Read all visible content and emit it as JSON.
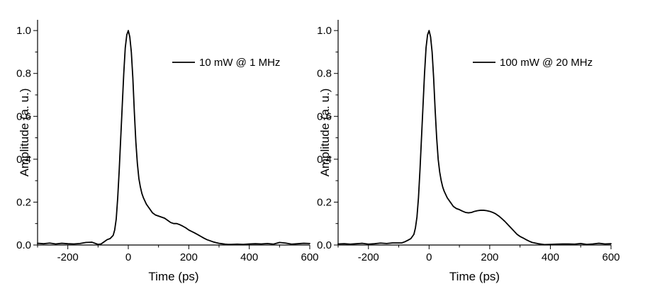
{
  "chart_data": [
    {
      "type": "line",
      "title": "",
      "xlabel": "Time (ps)",
      "ylabel": "Amplitude (a. u.)",
      "xlim": [
        -300,
        600
      ],
      "ylim": [
        0,
        1.05
      ],
      "xticks": [
        -200,
        0,
        200,
        400,
        600
      ],
      "xtick_labels": [
        "-200",
        "0",
        "200",
        "400",
        "600"
      ],
      "yticks": [
        0,
        0.2,
        0.4,
        0.6,
        0.8,
        1.0
      ],
      "ytick_labels": [
        "0.0",
        "0.2",
        "0.4",
        "0.6",
        "0.8",
        "1.0"
      ],
      "grid": false,
      "legend_position": "top-right",
      "series": [
        {
          "name": "10 mW @ 1 MHz",
          "color": "#000000",
          "x": [
            -300,
            -280,
            -260,
            -240,
            -220,
            -200,
            -180,
            -160,
            -140,
            -120,
            -100,
            -90,
            -80,
            -70,
            -60,
            -50,
            -45,
            -40,
            -35,
            -30,
            -25,
            -20,
            -15,
            -10,
            -5,
            0,
            5,
            10,
            15,
            20,
            25,
            30,
            35,
            40,
            45,
            50,
            60,
            70,
            80,
            90,
            100,
            110,
            120,
            130,
            140,
            150,
            160,
            170,
            180,
            190,
            200,
            210,
            220,
            230,
            240,
            250,
            260,
            270,
            280,
            290,
            300,
            310,
            320,
            330,
            340,
            360,
            380,
            400,
            420,
            440,
            460,
            480,
            500,
            520,
            540,
            560,
            580,
            600
          ],
          "y": [
            0.008,
            0.006,
            0.009,
            0.005,
            0.008,
            0.006,
            0.005,
            0.007,
            0.012,
            0.013,
            0.003,
            0.005,
            0.015,
            0.025,
            0.03,
            0.045,
            0.07,
            0.12,
            0.22,
            0.35,
            0.5,
            0.65,
            0.8,
            0.92,
            0.98,
            1.0,
            0.97,
            0.9,
            0.78,
            0.62,
            0.48,
            0.38,
            0.31,
            0.27,
            0.24,
            0.22,
            0.19,
            0.17,
            0.15,
            0.14,
            0.135,
            0.13,
            0.125,
            0.115,
            0.105,
            0.1,
            0.1,
            0.095,
            0.088,
            0.08,
            0.07,
            0.063,
            0.056,
            0.048,
            0.04,
            0.032,
            0.025,
            0.02,
            0.015,
            0.011,
            0.008,
            0.006,
            0.004,
            0.003,
            0.003,
            0.004,
            0.003,
            0.005,
            0.006,
            0.005,
            0.007,
            0.004,
            0.012,
            0.009,
            0.004,
            0.006,
            0.008,
            0.007
          ]
        }
      ]
    },
    {
      "type": "line",
      "title": "",
      "xlabel": "Time (ps)",
      "ylabel": "Amplitude (a. u.)",
      "xlim": [
        -300,
        600
      ],
      "ylim": [
        0,
        1.05
      ],
      "xticks": [
        -200,
        0,
        200,
        400,
        600
      ],
      "xtick_labels": [
        "-200",
        "0",
        "200",
        "400",
        "600"
      ],
      "yticks": [
        0,
        0.2,
        0.4,
        0.6,
        0.8,
        1.0
      ],
      "ytick_labels": [
        "0.0",
        "0.2",
        "0.4",
        "0.6",
        "0.8",
        "1.0"
      ],
      "grid": false,
      "legend_position": "top-right",
      "series": [
        {
          "name": "100 mW @ 20 MHz",
          "color": "#000000",
          "x": [
            -300,
            -280,
            -260,
            -240,
            -220,
            -200,
            -180,
            -160,
            -140,
            -120,
            -100,
            -90,
            -80,
            -70,
            -60,
            -50,
            -45,
            -40,
            -35,
            -30,
            -25,
            -20,
            -15,
            -10,
            -5,
            0,
            5,
            10,
            15,
            20,
            25,
            30,
            35,
            40,
            45,
            50,
            60,
            70,
            80,
            90,
            100,
            110,
            120,
            130,
            140,
            150,
            160,
            170,
            180,
            190,
            200,
            210,
            220,
            230,
            240,
            250,
            260,
            270,
            280,
            290,
            300,
            310,
            320,
            330,
            340,
            360,
            380,
            400,
            420,
            440,
            460,
            480,
            500,
            520,
            540,
            560,
            580,
            600
          ],
          "y": [
            0.005,
            0.006,
            0.004,
            0.006,
            0.008,
            0.004,
            0.006,
            0.009,
            0.007,
            0.01,
            0.01,
            0.01,
            0.015,
            0.022,
            0.03,
            0.05,
            0.08,
            0.13,
            0.22,
            0.35,
            0.5,
            0.65,
            0.8,
            0.92,
            0.98,
            1.0,
            0.97,
            0.9,
            0.78,
            0.63,
            0.5,
            0.4,
            0.34,
            0.3,
            0.27,
            0.25,
            0.22,
            0.2,
            0.18,
            0.17,
            0.165,
            0.158,
            0.152,
            0.15,
            0.152,
            0.157,
            0.16,
            0.162,
            0.162,
            0.16,
            0.157,
            0.152,
            0.145,
            0.135,
            0.123,
            0.11,
            0.095,
            0.08,
            0.065,
            0.05,
            0.04,
            0.033,
            0.025,
            0.018,
            0.012,
            0.006,
            0.002,
            0.003,
            0.004,
            0.005,
            0.005,
            0.004,
            0.007,
            0.003,
            0.005,
            0.008,
            0.005,
            0.006
          ]
        }
      ]
    }
  ]
}
